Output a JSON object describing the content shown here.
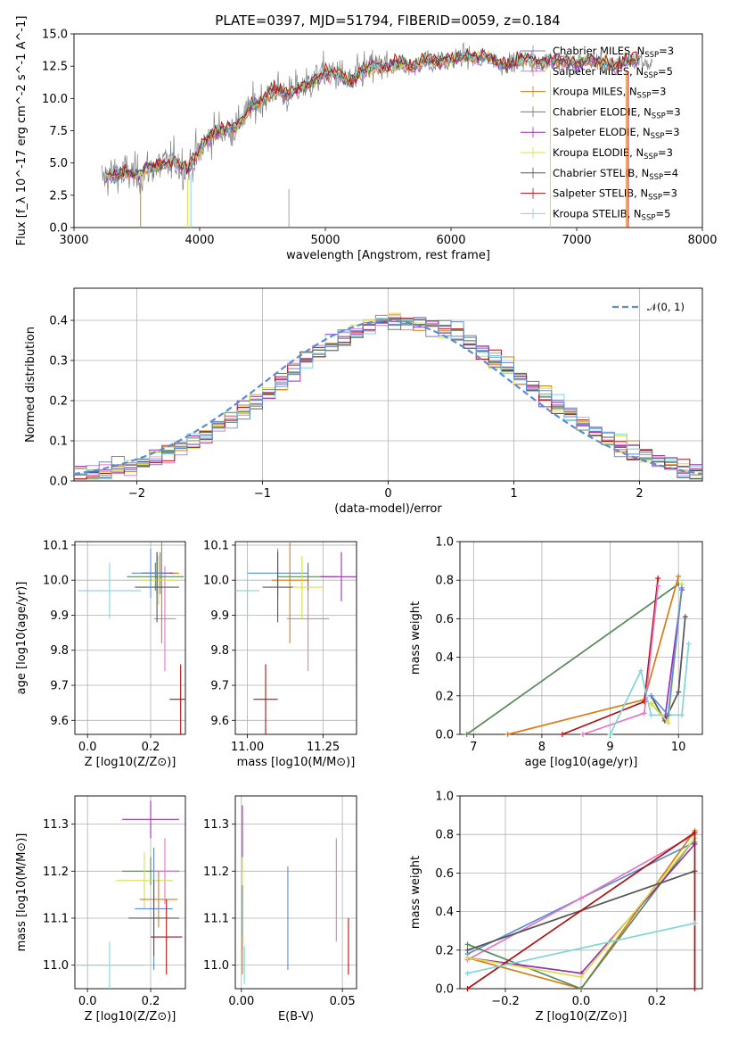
{
  "colors": {
    "Chabrier MILES": "#7b7bb8",
    "Salpeter MILES": "#e377c2",
    "Kroupa MILES": "#d97c16",
    "Chabrier ELODIE": "#5a8a5a",
    "Salpeter ELODIE": "#9b2fae",
    "Kroupa ELODIE": "#d4e04a",
    "Chabrier STELIB": "#555555",
    "Salpeter STELIB": "#b01010",
    "Kroupa STELIB": "#7fd6dc",
    "MILES blue": "#5b8bd9",
    "data": "#808080",
    "normal": "#5b8bd9"
  },
  "chart_data": [
    {
      "type": "line",
      "title": "PLATE=0397, MJD=51794, FIBERID=0059, z=0.184",
      "xlabel": "wavelength [Angstrom, rest frame]",
      "ylabel": "Flux [f_λ 10^-17 erg cm^-2 s^-1 A^-1]",
      "xlim": [
        3000,
        8000
      ],
      "ylim": [
        0,
        15
      ],
      "xticks": [
        "3000",
        "4000",
        "5000",
        "6000",
        "7000",
        "8000"
      ],
      "yticks": [
        "0.0",
        "2.5",
        "5.0",
        "7.5",
        "10.0",
        "12.5",
        "15.0"
      ],
      "legend_position": "top-right",
      "legend": [
        {
          "name": "Chabrier MILES",
          "nssp": "3"
        },
        {
          "name": "Salpeter MILES",
          "nssp": "5"
        },
        {
          "name": "Kroupa MILES",
          "nssp": "3"
        },
        {
          "name": "Chabrier ELODIE",
          "nssp": "3"
        },
        {
          "name": "Salpeter ELODIE",
          "nssp": "3"
        },
        {
          "name": "Kroupa ELODIE",
          "nssp": "3"
        },
        {
          "name": "Chabrier STELIB",
          "nssp": "4"
        },
        {
          "name": "Salpeter STELIB",
          "nssp": "3"
        },
        {
          "name": "Kroupa STELIB",
          "nssp": "5"
        }
      ],
      "spectrum": {
        "x": [
          3220,
          3300,
          3400,
          3500,
          3600,
          3700,
          3800,
          3900,
          4000,
          4100,
          4200,
          4300,
          4400,
          4500,
          4600,
          4700,
          4800,
          4900,
          5000,
          5100,
          5200,
          5300,
          5400,
          5500,
          5600,
          5700,
          5800,
          5900,
          6000,
          6100,
          6200,
          6300,
          6400,
          6500,
          6600,
          6700,
          6800,
          6900,
          7000,
          7100,
          7200,
          7300,
          7400,
          7500,
          7600
        ],
        "y": [
          3.8,
          4.1,
          4.3,
          4.0,
          4.6,
          4.9,
          5.2,
          4.5,
          6.0,
          7.3,
          7.6,
          7.9,
          9.2,
          10.0,
          10.7,
          10.3,
          10.8,
          11.3,
          12.0,
          11.9,
          11.2,
          12.2,
          12.5,
          12.4,
          12.8,
          12.4,
          13.1,
          12.8,
          13.0,
          13.3,
          13.1,
          13.3,
          12.6,
          12.8,
          13.1,
          12.7,
          13.0,
          12.9,
          12.7,
          13.0,
          12.8,
          12.5,
          12.9,
          13.0,
          12.4
        ]
      }
    },
    {
      "type": "histogram",
      "xlabel": "(data-model)/error",
      "ylabel": "Normed distribution",
      "xlim": [
        -2.5,
        2.5
      ],
      "ylim": [
        0,
        0.48
      ],
      "xticks": [
        "−2",
        "−1",
        "0",
        "1",
        "2"
      ],
      "yticks": [
        "0.0",
        "0.1",
        "0.2",
        "0.3",
        "0.4"
      ],
      "legend": [
        "𝒩(0, 1)"
      ],
      "bin_width": 0.1
    },
    {
      "type": "scatter",
      "xlabel": "Z [log10(Z/Z⊙)]",
      "ylabel": "age [log10(age/yr)]",
      "xlim": [
        -0.04,
        0.31
      ],
      "ylim": [
        9.56,
        10.11
      ],
      "xticks": [
        "0.0",
        "0.2"
      ],
      "yticks": [
        "9.6",
        "9.7",
        "9.8",
        "9.9",
        "10.0",
        "10.1"
      ],
      "points": [
        {
          "model": "Chabrier MILES",
          "x": 0.23,
          "xe": 0.05,
          "y": 10.02,
          "ye": 0.06
        },
        {
          "model": "Salpeter MILES",
          "x": 0.245,
          "xe": 0.035,
          "y": 9.89,
          "ye": 0.15
        },
        {
          "model": "Kroupa MILES",
          "x": 0.235,
          "xe": 0.055,
          "y": 10.02,
          "ye": 0.2
        },
        {
          "model": "Chabrier ELODIE",
          "x": 0.215,
          "xe": 0.09,
          "y": 10.01,
          "ye": 0.04
        },
        {
          "model": "Salpeter ELODIE",
          "x": 0.22,
          "xe": 0.05,
          "y": 10.02,
          "ye": 0.06
        },
        {
          "model": "Kroupa ELODIE",
          "x": 0.225,
          "xe": 0.06,
          "y": 10.0,
          "ye": 0.07
        },
        {
          "model": "Chabrier STELIB",
          "x": 0.22,
          "xe": 0.07,
          "y": 9.98,
          "ye": 0.1
        },
        {
          "model": "Salpeter STELIB",
          "x": 0.295,
          "xe": 0.035,
          "y": 9.66,
          "ye": 0.1
        },
        {
          "model": "Kroupa STELIB",
          "x": 0.07,
          "xe": 0.1,
          "y": 9.97,
          "ye": 0.08
        },
        {
          "model": "MILES blue",
          "x": 0.2,
          "xe": 0.06,
          "y": 10.02,
          "ye": 0.07
        }
      ]
    },
    {
      "type": "scatter",
      "xlabel": "mass [log10(M/M⊙)]",
      "ylabel": "",
      "xlim": [
        10.96,
        11.36
      ],
      "ylim": [
        9.56,
        10.11
      ],
      "xticks": [
        "11.00",
        "11.25"
      ],
      "yticks": [
        "9.6",
        "9.7",
        "9.8",
        "9.9",
        "10.0",
        "10.1"
      ],
      "points": [
        {
          "model": "MILES blue",
          "x": 11.1,
          "xe": 0.1,
          "y": 10.02,
          "ye": 0.07
        },
        {
          "model": "Salpeter MILES",
          "x": 11.2,
          "xe": 0.07,
          "y": 9.89,
          "ye": 0.15
        },
        {
          "model": "Kroupa MILES",
          "x": 11.14,
          "xe": 0.06,
          "y": 10.0,
          "ye": 0.18
        },
        {
          "model": "Chabrier ELODIE",
          "x": 11.2,
          "xe": 0.1,
          "y": 10.01,
          "ye": 0.04
        },
        {
          "model": "Salpeter ELODIE",
          "x": 11.31,
          "xe": 0.07,
          "y": 10.01,
          "ye": 0.07
        },
        {
          "model": "Kroupa ELODIE",
          "x": 11.18,
          "xe": 0.07,
          "y": 9.98,
          "ye": 0.09
        },
        {
          "model": "Chabrier STELIB",
          "x": 11.1,
          "xe": 0.05,
          "y": 9.98,
          "ye": 0.1
        },
        {
          "model": "Salpeter STELIB",
          "x": 11.06,
          "xe": 0.04,
          "y": 9.66,
          "ye": 0.1
        },
        {
          "model": "Kroupa STELIB",
          "x": 11.0,
          "xe": 0.04,
          "y": 9.97,
          "ye": 0.08
        }
      ]
    },
    {
      "type": "line",
      "xlabel": "age [log10(age/yr)]",
      "ylabel": "mass weight",
      "xlim": [
        6.8,
        10.35
      ],
      "ylim": [
        0,
        1
      ],
      "xticks": [
        "7",
        "8",
        "9",
        "10"
      ],
      "yticks": [
        "0.0",
        "0.2",
        "0.4",
        "0.6",
        "0.8",
        "1.0"
      ],
      "series": [
        {
          "model": "Chabrier ELODIE",
          "x": [
            6.9,
            10.0
          ],
          "y": [
            0.0,
            0.78
          ]
        },
        {
          "model": "Kroupa MILES",
          "x": [
            7.5,
            9.5,
            10.0
          ],
          "y": [
            0.0,
            0.18,
            0.82
          ]
        },
        {
          "model": "Salpeter STELIB",
          "x": [
            8.3,
            9.5,
            9.7
          ],
          "y": [
            0.0,
            0.17,
            0.81
          ]
        },
        {
          "model": "Salpeter MILES",
          "x": [
            8.6,
            9.5,
            9.7
          ],
          "y": [
            0.0,
            0.11,
            0.77
          ]
        },
        {
          "model": "Kroupa STELIB",
          "x": [
            9.0,
            9.45,
            9.6,
            10.05,
            10.15
          ],
          "y": [
            0.0,
            0.33,
            0.1,
            0.1,
            0.47
          ]
        },
        {
          "model": "Chabrier STELIB",
          "x": [
            9.6,
            9.8,
            10.0,
            10.1
          ],
          "y": [
            0.2,
            0.07,
            0.22,
            0.61
          ]
        },
        {
          "model": "Salpeter ELODIE",
          "x": [
            9.6,
            9.8,
            10.05
          ],
          "y": [
            0.16,
            0.08,
            0.75
          ]
        },
        {
          "model": "Kroupa ELODIE",
          "x": [
            9.6,
            9.85,
            10.05
          ],
          "y": [
            0.16,
            0.06,
            0.78
          ]
        },
        {
          "model": "MILES blue",
          "x": [
            9.6,
            9.85,
            10.05
          ],
          "y": [
            0.2,
            0.1,
            0.76
          ]
        }
      ]
    },
    {
      "type": "scatter",
      "xlabel": "Z [log10(Z/Z⊙)]",
      "ylabel": "mass [log10(M/M⊙)]",
      "xlim": [
        -0.04,
        0.31
      ],
      "ylim": [
        10.95,
        11.36
      ],
      "xticks": [
        "0.0",
        "0.2"
      ],
      "yticks": [
        "11.0",
        "11.1",
        "11.2",
        "11.3"
      ],
      "points": [
        {
          "model": "Salpeter ELODIE",
          "x": 0.2,
          "xe": 0.09,
          "y": 11.31,
          "ye": 0.04
        },
        {
          "model": "Chabrier ELODIE",
          "x": 0.2,
          "xe": 0.09,
          "y": 11.2,
          "ye": 0.03
        },
        {
          "model": "Salpeter MILES",
          "x": 0.245,
          "xe": 0.04,
          "y": 11.2,
          "ye": 0.07
        },
        {
          "model": "Kroupa ELODIE",
          "x": 0.18,
          "xe": 0.09,
          "y": 11.18,
          "ye": 0.06
        },
        {
          "model": "Kroupa MILES",
          "x": 0.225,
          "xe": 0.06,
          "y": 11.14,
          "ye": 0.06
        },
        {
          "model": "MILES blue",
          "x": 0.21,
          "xe": 0.06,
          "y": 11.12,
          "ye": 0.13
        },
        {
          "model": "Chabrier STELIB",
          "x": 0.21,
          "xe": 0.08,
          "y": 11.1,
          "ye": 0.08
        },
        {
          "model": "Salpeter STELIB",
          "x": 0.25,
          "xe": 0.05,
          "y": 11.06,
          "ye": 0.08
        },
        {
          "model": "Kroupa STELIB",
          "x": 0.07,
          "xe": 0.11,
          "y": 11.0,
          "ye": 0.05
        }
      ]
    },
    {
      "type": "scatter",
      "xlabel": "E(B-V)",
      "ylabel": "",
      "xlim": [
        -0.003,
        0.057
      ],
      "ylim": [
        10.95,
        11.36
      ],
      "xticks": [
        "0.00",
        "0.05"
      ],
      "yticks": [
        "11.0",
        "11.1",
        "11.2",
        "11.3"
      ],
      "points": [
        {
          "model": "Salpeter ELODIE",
          "x": 0.0005,
          "y": 11.27,
          "ye": 0.07
        },
        {
          "model": "Kroupa ELODIE",
          "x": 0.0005,
          "y": 11.18,
          "ye": 0.05
        },
        {
          "model": "Chabrier ELODIE",
          "x": 0.0005,
          "y": 11.1,
          "ye": 0.07
        },
        {
          "model": "Kroupa MILES",
          "x": 0.0005,
          "y": 11.02,
          "ye": 0.04
        },
        {
          "model": "Kroupa STELIB",
          "x": 0.0015,
          "y": 11.0,
          "ye": 0.04
        },
        {
          "model": "MILES blue",
          "x": 0.023,
          "y": 11.1,
          "ye": 0.11
        },
        {
          "model": "Salpeter MILES",
          "x": 0.047,
          "y": 11.16,
          "ye": 0.11
        },
        {
          "model": "Salpeter STELIB",
          "x": 0.053,
          "y": 11.04,
          "ye": 0.06
        }
      ]
    },
    {
      "type": "line",
      "xlabel": "Z [log10(Z/Z⊙)]",
      "ylabel": "mass weight",
      "xlim": [
        -0.32,
        0.32
      ],
      "ylim": [
        0,
        1
      ],
      "xticks": [
        "−0.2",
        "0.0",
        "0.2"
      ],
      "yticks": [
        "0.0",
        "0.2",
        "0.4",
        "0.6",
        "0.8",
        "1.0"
      ],
      "series": [
        {
          "model": "MILES blue",
          "x": [
            -0.3,
            0.3
          ],
          "y": [
            0.18,
            0.76
          ]
        },
        {
          "model": "Salpeter MILES",
          "x": [
            -0.3,
            0.0,
            0.3
          ],
          "y": [
            0.15,
            0.47,
            0.8
          ]
        },
        {
          "model": "Kroupa MILES",
          "x": [
            -0.3,
            0.0,
            0.3
          ],
          "y": [
            0.16,
            0.0,
            0.82
          ]
        },
        {
          "model": "Chabrier ELODIE",
          "x": [
            -0.3,
            0.0,
            0.3
          ],
          "y": [
            0.23,
            0.0,
            0.78
          ]
        },
        {
          "model": "Salpeter ELODIE",
          "x": [
            -0.3,
            0.0,
            0.3
          ],
          "y": [
            0.16,
            0.08,
            0.75
          ]
        },
        {
          "model": "Kroupa ELODIE",
          "x": [
            -0.3,
            0.0,
            0.3
          ],
          "y": [
            0.16,
            0.06,
            0.78
          ]
        },
        {
          "model": "Chabrier STELIB",
          "x": [
            -0.3,
            0.3
          ],
          "y": [
            0.2,
            0.61
          ]
        },
        {
          "model": "Salpeter STELIB",
          "x": [
            -0.3,
            0.3,
            0.3
          ],
          "y": [
            0.0,
            0.81,
            0.0
          ]
        },
        {
          "model": "Kroupa STELIB",
          "x": [
            -0.3,
            0.3
          ],
          "y": [
            0.08,
            0.34
          ]
        }
      ]
    }
  ]
}
